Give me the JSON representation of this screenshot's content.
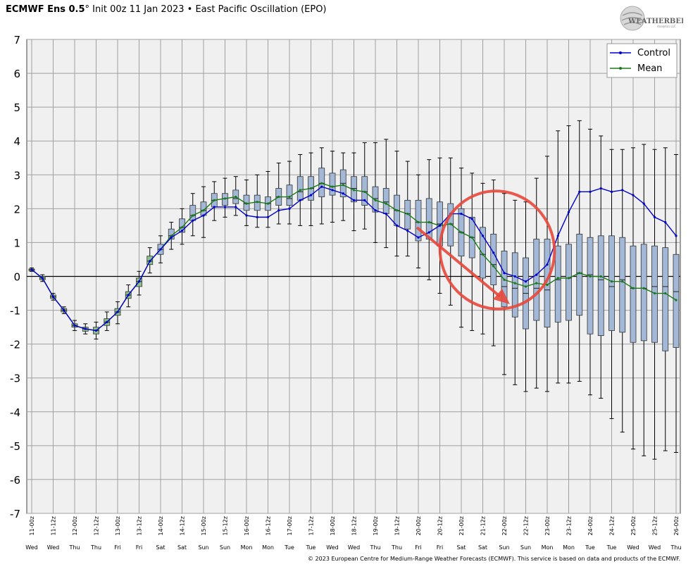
{
  "header": {
    "model": "ECMWF Ens 0.5",
    "degree": "°",
    "init": " Init 00z 11 Jan 2023",
    "sep": " • ",
    "index": "East Pacific Oscillation (EPO)"
  },
  "logo": {
    "text": "WEATHERBELL",
    "sub": "Analytics LLC"
  },
  "footer": {
    "copyright": "© 2023 European Centre for Medium-Range Weather Forecasts (ECMWF). This service is based on data and products of the ECMWF."
  },
  "colors": {
    "control": "#0000cc",
    "mean": "#1a7a1a",
    "box": "#a3b8d6",
    "box_early": "#8cbf8c",
    "plot_bg": "#f0f0f0",
    "grid": "#a0a0a0",
    "annotation": "#e8473b"
  },
  "chart_data": {
    "type": "box",
    "title": "",
    "ylim": [
      -7,
      7
    ],
    "yticks": [
      7,
      6,
      5,
      4,
      3,
      2,
      1,
      0,
      -1,
      -2,
      -3,
      -4,
      -5,
      -6,
      -7
    ],
    "grid": true,
    "legend_position": "top-right",
    "x_labels": [
      "11-00z",
      "11-12z",
      "12-00z",
      "12-12z",
      "13-00z",
      "13-12z",
      "14-00z",
      "14-12z",
      "15-00z",
      "15-12z",
      "16-00z",
      "16-12z",
      "17-00z",
      "17-12z",
      "18-00z",
      "18-12z",
      "19-00z",
      "19-12z",
      "20-00z",
      "20-12z",
      "21-00z",
      "21-12z",
      "22-00z",
      "22-12z",
      "23-00z",
      "23-12z",
      "24-00z",
      "24-12z",
      "25-00z",
      "25-12z",
      "26-00z"
    ],
    "x_days": [
      "Wed",
      "Wed",
      "Thu",
      "Thu",
      "Fri",
      "Fri",
      "Sat",
      "Sat",
      "Sun",
      "Sun",
      "Mon",
      "Mon",
      "Tue",
      "Tue",
      "Wed",
      "Wed",
      "Thu",
      "Thu",
      "Fri",
      "Fri",
      "Sat",
      "Sat",
      "Sun",
      "Sun",
      "Mon",
      "Mon",
      "Tue",
      "Tue",
      "Wed",
      "Wed",
      "Thu"
    ],
    "series": [
      {
        "name": "Control",
        "values": [
          0.2,
          -0.05,
          -0.6,
          -1.0,
          -1.45,
          -1.55,
          -1.6,
          -1.35,
          -1.05,
          -0.55,
          -0.15,
          0.45,
          0.8,
          1.15,
          1.35,
          1.65,
          1.8,
          2.05,
          2.05,
          2.05,
          1.8,
          1.75,
          1.75,
          1.95,
          2.0,
          2.25,
          2.4,
          2.65,
          2.55,
          2.45,
          2.25,
          2.25,
          1.95,
          1.85,
          1.5,
          1.35,
          1.15,
          1.3,
          1.5,
          1.85,
          1.85,
          1.7,
          1.2,
          0.7,
          0.1,
          0.0,
          -0.15,
          0.05,
          0.35,
          1.2,
          1.9,
          2.5,
          2.5,
          2.6,
          2.5,
          2.55,
          2.4,
          2.15,
          1.75,
          1.6,
          1.2
        ]
      },
      {
        "name": "Mean",
        "values": [
          0.2,
          -0.05,
          -0.6,
          -1.0,
          -1.45,
          -1.55,
          -1.6,
          -1.35,
          -1.05,
          -0.55,
          -0.15,
          0.45,
          0.8,
          1.2,
          1.45,
          1.8,
          1.95,
          2.25,
          2.3,
          2.35,
          2.15,
          2.2,
          2.15,
          2.35,
          2.35,
          2.55,
          2.6,
          2.75,
          2.65,
          2.7,
          2.55,
          2.5,
          2.25,
          2.15,
          1.95,
          1.85,
          1.6,
          1.6,
          1.5,
          1.55,
          1.3,
          1.15,
          0.65,
          0.3,
          -0.1,
          -0.2,
          -0.3,
          -0.2,
          -0.25,
          -0.05,
          -0.05,
          0.1,
          0.0,
          0.0,
          -0.15,
          -0.15,
          -0.35,
          -0.35,
          -0.5,
          -0.5,
          -0.7
        ]
      }
    ],
    "boxes": [
      {
        "min": 0.15,
        "q1": 0.17,
        "median": 0.2,
        "q3": 0.22,
        "max": 0.25
      },
      {
        "min": -0.15,
        "q1": -0.1,
        "median": -0.05,
        "q3": 0.0,
        "max": 0.05
      },
      {
        "min": -0.7,
        "q1": -0.65,
        "median": -0.6,
        "q3": -0.55,
        "max": -0.5
      },
      {
        "min": -1.1,
        "q1": -1.05,
        "median": -1.0,
        "q3": -0.95,
        "max": -0.9
      },
      {
        "min": -1.6,
        "q1": -1.5,
        "median": -1.45,
        "q3": -1.4,
        "max": -1.3
      },
      {
        "min": -1.7,
        "q1": -1.62,
        "median": -1.55,
        "q3": -1.5,
        "max": -1.4
      },
      {
        "min": -1.85,
        "q1": -1.7,
        "median": -1.6,
        "q3": -1.5,
        "max": -1.35
      },
      {
        "min": -1.6,
        "q1": -1.45,
        "median": -1.35,
        "q3": -1.25,
        "max": -1.05
      },
      {
        "min": -1.4,
        "q1": -1.15,
        "median": -1.05,
        "q3": -0.95,
        "max": -0.75
      },
      {
        "min": -0.9,
        "q1": -0.65,
        "median": -0.55,
        "q3": -0.45,
        "max": -0.25
      },
      {
        "min": -0.55,
        "q1": -0.3,
        "median": -0.15,
        "q3": -0.05,
        "max": 0.15
      },
      {
        "min": 0.1,
        "q1": 0.35,
        "median": 0.45,
        "q3": 0.6,
        "max": 0.85
      },
      {
        "min": 0.4,
        "q1": 0.65,
        "median": 0.8,
        "q3": 0.95,
        "max": 1.2
      },
      {
        "min": 0.8,
        "q1": 1.1,
        "median": 1.2,
        "q3": 1.4,
        "max": 1.6
      },
      {
        "min": 0.95,
        "q1": 1.3,
        "median": 1.45,
        "q3": 1.7,
        "max": 2.0
      },
      {
        "min": 1.2,
        "q1": 1.65,
        "median": 1.8,
        "q3": 2.1,
        "max": 2.45
      },
      {
        "min": 1.15,
        "q1": 1.8,
        "median": 1.95,
        "q3": 2.2,
        "max": 2.65
      },
      {
        "min": 1.65,
        "q1": 2.05,
        "median": 2.25,
        "q3": 2.45,
        "max": 2.8
      },
      {
        "min": 1.75,
        "q1": 2.1,
        "median": 2.3,
        "q3": 2.45,
        "max": 2.9
      },
      {
        "min": 1.8,
        "q1": 2.15,
        "median": 2.3,
        "q3": 2.55,
        "max": 2.95
      },
      {
        "min": 1.5,
        "q1": 1.95,
        "median": 2.15,
        "q3": 2.4,
        "max": 2.85
      },
      {
        "min": 1.45,
        "q1": 1.95,
        "median": 2.2,
        "q3": 2.4,
        "max": 3.0
      },
      {
        "min": 1.45,
        "q1": 1.95,
        "median": 2.15,
        "q3": 2.35,
        "max": 3.1
      },
      {
        "min": 1.55,
        "q1": 2.1,
        "median": 2.35,
        "q3": 2.6,
        "max": 3.35
      },
      {
        "min": 1.55,
        "q1": 2.1,
        "median": 2.3,
        "q3": 2.7,
        "max": 3.4
      },
      {
        "min": 1.5,
        "q1": 2.25,
        "median": 2.5,
        "q3": 2.95,
        "max": 3.6
      },
      {
        "min": 1.5,
        "q1": 2.25,
        "median": 2.6,
        "q3": 2.95,
        "max": 3.65
      },
      {
        "min": 1.55,
        "q1": 2.35,
        "median": 2.75,
        "q3": 3.2,
        "max": 3.8
      },
      {
        "min": 1.6,
        "q1": 2.4,
        "median": 2.65,
        "q3": 3.05,
        "max": 3.7
      },
      {
        "min": 1.65,
        "q1": 2.35,
        "median": 2.75,
        "q3": 3.15,
        "max": 3.65
      },
      {
        "min": 1.35,
        "q1": 2.2,
        "median": 2.6,
        "q3": 2.95,
        "max": 3.65
      },
      {
        "min": 1.4,
        "q1": 2.1,
        "median": 2.5,
        "q3": 2.95,
        "max": 3.95
      },
      {
        "min": 1.0,
        "q1": 1.9,
        "median": 2.3,
        "q3": 2.65,
        "max": 3.95
      },
      {
        "min": 0.85,
        "q1": 1.85,
        "median": 2.2,
        "q3": 2.6,
        "max": 4.05
      },
      {
        "min": 0.6,
        "q1": 1.5,
        "median": 1.95,
        "q3": 2.4,
        "max": 3.7
      },
      {
        "min": 0.6,
        "q1": 1.4,
        "median": 1.85,
        "q3": 2.25,
        "max": 3.4
      },
      {
        "min": 0.25,
        "q1": 1.05,
        "median": 1.6,
        "q3": 2.25,
        "max": 3.0
      },
      {
        "min": -0.1,
        "q1": 1.1,
        "median": 1.6,
        "q3": 2.3,
        "max": 3.45
      },
      {
        "min": -0.5,
        "q1": 0.9,
        "median": 1.55,
        "q3": 2.2,
        "max": 3.5
      },
      {
        "min": -0.85,
        "q1": 0.9,
        "median": 1.55,
        "q3": 2.15,
        "max": 3.5
      },
      {
        "min": -1.5,
        "q1": 0.6,
        "median": 1.3,
        "q3": 2.0,
        "max": 3.2
      },
      {
        "min": -1.6,
        "q1": 0.55,
        "median": 1.15,
        "q3": 1.75,
        "max": 3.05
      },
      {
        "min": -1.7,
        "q1": -0.05,
        "median": 0.65,
        "q3": 1.45,
        "max": 2.75
      },
      {
        "min": -2.05,
        "q1": -0.25,
        "median": 0.35,
        "q3": 1.25,
        "max": 2.85
      },
      {
        "min": -2.9,
        "q1": -0.9,
        "median": -0.3,
        "q3": 0.75,
        "max": 2.45
      },
      {
        "min": -3.2,
        "q1": -1.2,
        "median": -0.35,
        "q3": 0.7,
        "max": 2.25
      },
      {
        "min": -3.4,
        "q1": -1.55,
        "median": -0.5,
        "q3": 0.55,
        "max": 2.2
      },
      {
        "min": -3.3,
        "q1": -1.3,
        "median": -0.35,
        "q3": 1.1,
        "max": 2.9
      },
      {
        "min": -3.4,
        "q1": -1.5,
        "median": -0.4,
        "q3": 1.1,
        "max": 3.55
      },
      {
        "min": -3.15,
        "q1": -1.35,
        "median": -0.1,
        "q3": 0.9,
        "max": 4.3
      },
      {
        "min": -3.15,
        "q1": -1.3,
        "median": -0.05,
        "q3": 0.95,
        "max": 4.45
      },
      {
        "min": -3.1,
        "q1": -1.15,
        "median": 0.1,
        "q3": 1.25,
        "max": 4.6
      },
      {
        "min": -3.5,
        "q1": -1.7,
        "median": 0.05,
        "q3": 1.15,
        "max": 4.35
      },
      {
        "min": -3.6,
        "q1": -1.75,
        "median": -0.1,
        "q3": 1.2,
        "max": 4.15
      },
      {
        "min": -4.2,
        "q1": -1.6,
        "median": -0.3,
        "q3": 1.2,
        "max": 3.75
      },
      {
        "min": -4.6,
        "q1": -1.65,
        "median": -0.1,
        "q3": 1.15,
        "max": 3.75
      },
      {
        "min": -5.1,
        "q1": -1.95,
        "median": -0.35,
        "q3": 0.9,
        "max": 3.8
      },
      {
        "min": -5.3,
        "q1": -1.9,
        "median": -0.35,
        "q3": 0.95,
        "max": 3.9
      },
      {
        "min": -5.4,
        "q1": -1.95,
        "median": -0.3,
        "q3": 0.9,
        "max": 3.75
      },
      {
        "min": -5.15,
        "q1": -2.2,
        "median": -0.3,
        "q3": 0.85,
        "max": 3.8
      },
      {
        "min": -5.2,
        "q1": -2.1,
        "median": -0.45,
        "q3": 0.65,
        "max": 3.6
      }
    ]
  }
}
